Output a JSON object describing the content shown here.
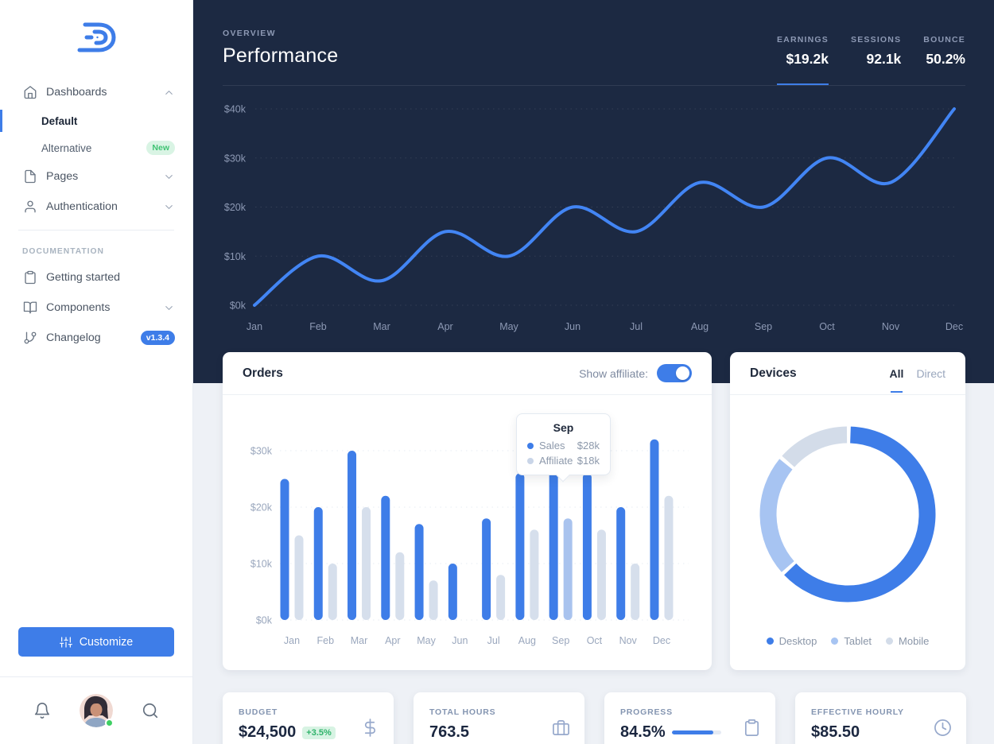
{
  "colors": {
    "navy": "#1c2942",
    "accent": "#3e7de8",
    "line": "#4285f4",
    "sales_bar": "#3e7de8",
    "affiliate_bar": "#d6dfec",
    "affiliate_bar_highlight": "#a9c3ee",
    "success_green": "#2fb36a",
    "page_background": "#eef1f6"
  },
  "sidebar": {
    "nav": [
      {
        "label": "Dashboards",
        "icon": "home",
        "chevron": "up",
        "children": [
          {
            "label": "Default",
            "active": true
          },
          {
            "label": "Alternative",
            "badge": "New",
            "badge_variant": "success"
          }
        ]
      },
      {
        "label": "Pages",
        "icon": "file",
        "chevron": "down"
      },
      {
        "label": "Authentication",
        "icon": "user",
        "chevron": "down"
      }
    ],
    "section_label": "DOCUMENTATION",
    "docs": [
      {
        "label": "Getting started",
        "icon": "clipboard"
      },
      {
        "label": "Components",
        "icon": "book",
        "chevron": "down"
      },
      {
        "label": "Changelog",
        "icon": "git-branch",
        "badge": "v1.3.4",
        "badge_variant": "primary"
      }
    ],
    "customize_label": "Customize"
  },
  "header": {
    "eyebrow": "OVERVIEW",
    "title": "Performance",
    "stats": [
      {
        "label": "EARNINGS",
        "value": "$19.2k",
        "active": true
      },
      {
        "label": "SESSIONS",
        "value": "92.1k",
        "active": false
      },
      {
        "label": "BOUNCE",
        "value": "50.2%",
        "active": false
      }
    ]
  },
  "orders_card": {
    "title": "Orders",
    "toggle_label": "Show affiliate:",
    "toggle_on": true,
    "tooltip": {
      "title": "Sep",
      "rows": [
        {
          "label": "Sales",
          "value": "$28k",
          "dot": "#3e7de8"
        },
        {
          "label": "Affiliate",
          "value": "$18k",
          "dot": "#c9d5e8"
        }
      ]
    }
  },
  "devices_card": {
    "title": "Devices",
    "tabs": [
      {
        "label": "All",
        "active": true
      },
      {
        "label": "Direct",
        "active": false
      }
    ],
    "legend": [
      {
        "label": "Desktop",
        "color": "#3e7de8"
      },
      {
        "label": "Tablet",
        "color": "#a7c4f2"
      },
      {
        "label": "Mobile",
        "color": "#d3dce9"
      }
    ]
  },
  "kpis": [
    {
      "label": "BUDGET",
      "value": "$24,500",
      "badge": "+3.5%",
      "icon": "dollar"
    },
    {
      "label": "TOTAL HOURS",
      "value": "763.5",
      "icon": "briefcase"
    },
    {
      "label": "PROGRESS",
      "value": "84.5%",
      "icon": "clipboard",
      "progress": 84.5
    },
    {
      "label": "EFFECTIVE HOURLY",
      "value": "$85.50",
      "icon": "clock"
    }
  ],
  "chart_data": [
    {
      "id": "performance-line",
      "type": "line",
      "title": "Performance monthly earnings",
      "x": [
        "Jan",
        "Feb",
        "Mar",
        "Apr",
        "May",
        "Jun",
        "Jul",
        "Aug",
        "Sep",
        "Oct",
        "Nov",
        "Dec"
      ],
      "series": [
        {
          "name": "Earnings ($k)",
          "values": [
            0,
            10,
            5,
            15,
            10,
            20,
            15,
            25,
            20,
            30,
            25,
            40
          ]
        }
      ],
      "ylim": [
        0,
        40
      ],
      "yticks": [
        0,
        10,
        20,
        30,
        40
      ],
      "ytick_labels": [
        "$0k",
        "$10k",
        "$20k",
        "$30k",
        "$40k"
      ],
      "grid": "dotted-horizontal",
      "legend_position": "none",
      "line_color": "#4285f4"
    },
    {
      "id": "orders-bars",
      "type": "bar",
      "title": "Orders monthly ($k)",
      "categories": [
        "Jan",
        "Feb",
        "Mar",
        "Apr",
        "May",
        "Jun",
        "Jul",
        "Aug",
        "Sep",
        "Oct",
        "Nov",
        "Dec"
      ],
      "series": [
        {
          "name": "Sales",
          "color": "#3e7de8",
          "values": [
            25,
            20,
            30,
            22,
            17,
            10,
            18,
            26,
            28,
            26,
            20,
            32
          ]
        },
        {
          "name": "Affiliate",
          "color": "#d6dfec",
          "values": [
            15,
            10,
            20,
            12,
            7,
            0,
            8,
            16,
            18,
            16,
            10,
            22
          ]
        }
      ],
      "ylim": [
        0,
        33
      ],
      "yticks": [
        0,
        10,
        20,
        30
      ],
      "ytick_labels": [
        "$0k",
        "$10k",
        "$20k",
        "$30k"
      ],
      "grid": "dotted-horizontal",
      "highlight_category": "Sep",
      "highlight_affiliate_color": "#a9c3ee"
    },
    {
      "id": "devices-donut",
      "type": "pie",
      "title": "Devices share (%)",
      "labels": [
        "Desktop",
        "Tablet",
        "Mobile"
      ],
      "values": [
        63,
        23,
        14
      ],
      "colors": [
        "#3e7de8",
        "#a7c4f2",
        "#d3dce9"
      ],
      "donut": true,
      "legend_position": "bottom"
    }
  ]
}
